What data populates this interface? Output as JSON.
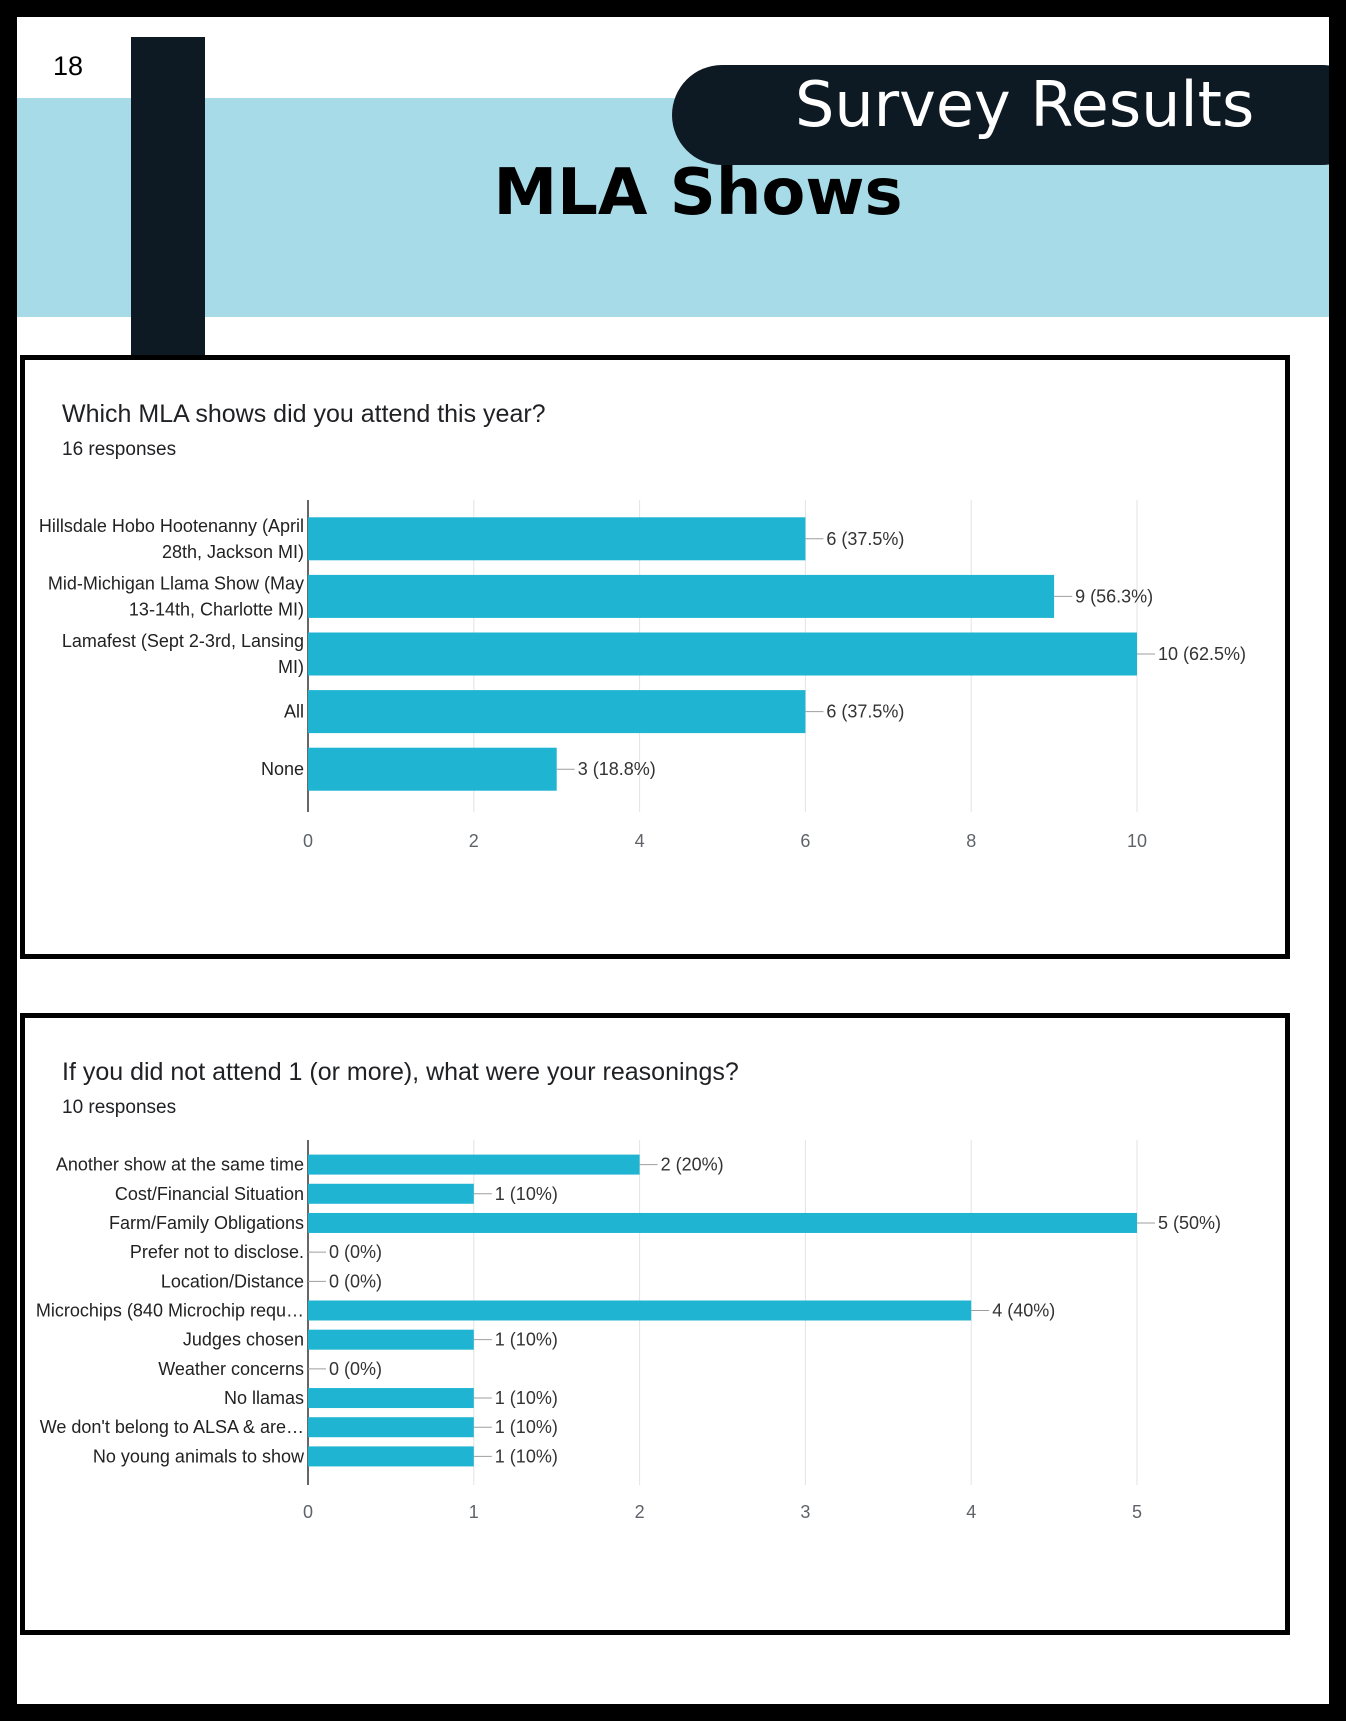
{
  "page_number": "18",
  "header": {
    "pill_title": "Survey Results",
    "main_title": "MLA Shows"
  },
  "colors": {
    "band": "#a7dbe7",
    "dark": "#0e1a23",
    "bar": "#1fb4d2"
  },
  "chart_data": [
    {
      "type": "bar",
      "orientation": "horizontal",
      "title": "Which MLA shows did you attend this year?",
      "subtitle": "16 responses",
      "categories": [
        [
          "Hillsdale Hobo Hootenanny (April",
          "28th, Jackson MI)"
        ],
        [
          "Mid-Michigan Llama Show (May",
          "13-14th, Charlotte MI)"
        ],
        [
          "Lamafest (Sept 2-3rd, Lansing",
          "MI)"
        ],
        [
          "All"
        ],
        [
          "None"
        ]
      ],
      "values": [
        6,
        9,
        10,
        6,
        3
      ],
      "data_labels": [
        "6 (37.5%)",
        "9 (56.3%)",
        "10 (62.5%)",
        "6 (37.5%)",
        "3 (18.8%)"
      ],
      "xlim": [
        0,
        10
      ],
      "xticks": [
        0,
        2,
        4,
        6,
        8,
        10
      ],
      "grid": true
    },
    {
      "type": "bar",
      "orientation": "horizontal",
      "title": "If you did not attend 1 (or more), what were your reasonings?",
      "subtitle": "10 responses",
      "categories": [
        [
          "Another show at the same time"
        ],
        [
          "Cost/Financial Situation"
        ],
        [
          "Farm/Family Obligations"
        ],
        [
          "Prefer not to disclose."
        ],
        [
          "Location/Distance"
        ],
        [
          "Microchips (840 Microchip requ…"
        ],
        [
          "Judges chosen"
        ],
        [
          "Weather concerns"
        ],
        [
          "No llamas"
        ],
        [
          "We don't belong to ALSA & are…"
        ],
        [
          "No young animals to show"
        ]
      ],
      "values": [
        2,
        1,
        5,
        0,
        0,
        4,
        1,
        0,
        1,
        1,
        1
      ],
      "data_labels": [
        "2 (20%)",
        "1 (10%)",
        "5 (50%)",
        "0 (0%)",
        "0 (0%)",
        "4 (40%)",
        "1 (10%)",
        "0 (0%)",
        "1 (10%)",
        "1 (10%)",
        "1 (10%)"
      ],
      "xlim": [
        0,
        5
      ],
      "xticks": [
        0,
        1,
        2,
        3,
        4,
        5
      ],
      "grid": true
    }
  ]
}
